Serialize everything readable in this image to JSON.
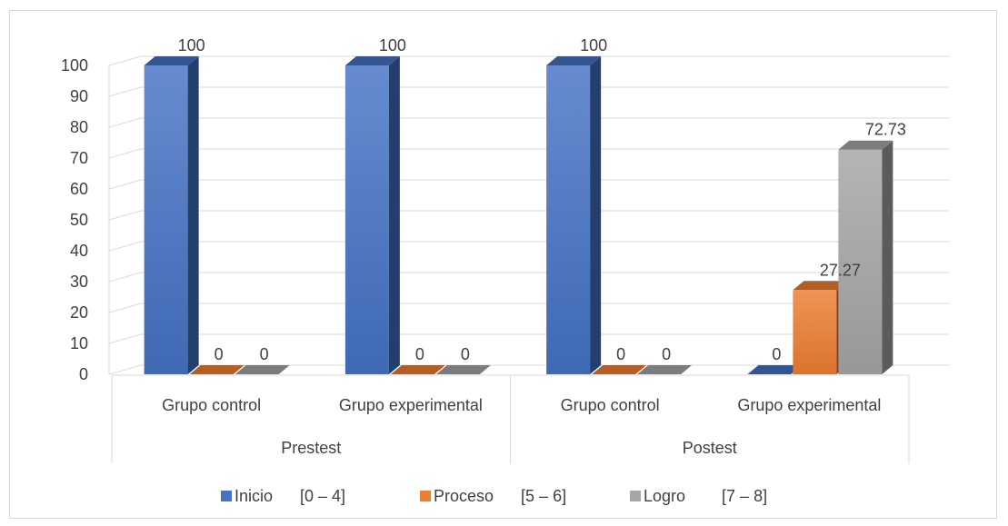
{
  "chart_data": {
    "type": "bar",
    "title": "",
    "xlabel": "",
    "ylabel": "",
    "ylim": [
      0,
      100
    ],
    "yticks": [
      0,
      10,
      20,
      30,
      40,
      50,
      60,
      70,
      80,
      90,
      100
    ],
    "groups": [
      {
        "label": "Prestest",
        "categories": [
          "Grupo control",
          "Grupo experimental"
        ]
      },
      {
        "label": "Postest",
        "categories": [
          "Grupo control",
          "Grupo experimental"
        ]
      }
    ],
    "categories": [
      "Grupo control",
      "Grupo experimental",
      "Grupo control",
      "Grupo experimental"
    ],
    "series": [
      {
        "name": "Inicio      [0 – 4]",
        "color": "#4472c4",
        "values": [
          100,
          100,
          100,
          0
        ]
      },
      {
        "name": "Proceso      [5 – 6]",
        "color": "#ed7d31",
        "values": [
          0,
          0,
          0,
          27.27
        ]
      },
      {
        "name": "Logro        [7 – 8]",
        "color": "#a5a5a5",
        "values": [
          0,
          0,
          0,
          72.73
        ]
      }
    ],
    "data_labels": [
      [
        "100",
        "100",
        "100",
        "0"
      ],
      [
        "0",
        "0",
        "0",
        "27.27"
      ],
      [
        "0",
        "0",
        "0",
        "72.73"
      ]
    ],
    "legend": "bottom",
    "grid": true,
    "style": "3d-column"
  }
}
